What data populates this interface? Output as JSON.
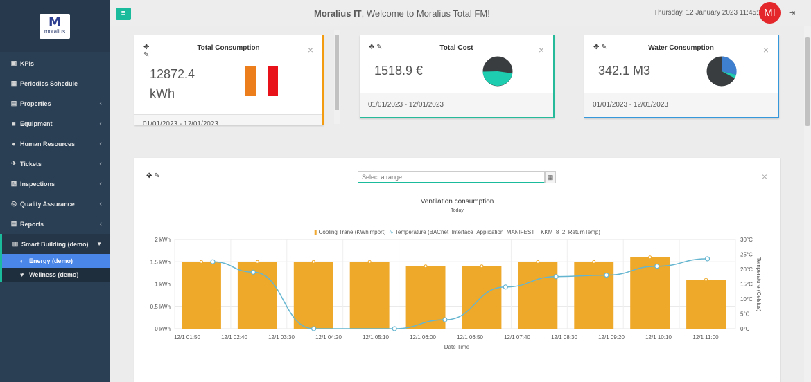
{
  "sidebar": {
    "logo_mark": "M",
    "logo_text": "moralius",
    "items": [
      {
        "label": "KPIs",
        "icon": "▣"
      },
      {
        "label": "Periodics Schedule",
        "icon": "▦"
      },
      {
        "label": "Properties",
        "icon": "▤"
      },
      {
        "label": "Equipment",
        "icon": "■"
      },
      {
        "label": "Human Resources",
        "icon": "●"
      },
      {
        "label": "Tickets",
        "icon": "✈"
      },
      {
        "label": "Inspections",
        "icon": "▧"
      },
      {
        "label": "Quality Assurance",
        "icon": "◎"
      },
      {
        "label": "Reports",
        "icon": "▤"
      }
    ],
    "active_item": {
      "label": "Smart Building (demo)",
      "icon": "▥"
    },
    "sub_items": [
      {
        "label": "Energy (demo)",
        "icon": "◐"
      },
      {
        "label": "Wellness (demo)",
        "icon": "♥"
      }
    ]
  },
  "topbar": {
    "brand": "Moralius IT",
    "welcome": ", Welcome to Moralius Total FM!",
    "datetime": "Thursday, 12 January 2023 11:45:16",
    "avatar_initials": "MI"
  },
  "cards": [
    {
      "title": "Total Consumption",
      "value": "12872.4",
      "unit": "kWh",
      "footer": "01/01/2023 - 12/01/2023",
      "accent": "#f39c12"
    },
    {
      "title": "Total Cost",
      "value": "1518.9 €",
      "footer": "01/01/2023 - 12/01/2023",
      "accent": "#26b99a"
    },
    {
      "title": "Water Consumption",
      "value": "342.1 M3",
      "footer": "01/01/2023 - 12/01/2023",
      "accent": "#3498db"
    }
  ],
  "range_input": {
    "placeholder": "Select a range"
  },
  "chart_data": {
    "type": "bar",
    "title": "Ventilation consumption",
    "subtitle": "Today",
    "xlabel": "Date Time",
    "ylabel_right": "Temperature (Celsius)",
    "categories": [
      "12/1 01:50",
      "12/1 02:40",
      "12/1 03:30",
      "12/1 04:20",
      "12/1 05:10",
      "12/1 06:00",
      "12/1 06:50",
      "12/1 07:40",
      "12/1 08:30",
      "12/1 09:20",
      "12/1 10:10",
      "12/1 11:00"
    ],
    "y_ticks": [
      "0 kWh",
      "0.5 kWh",
      "1 kWh",
      "1.5 kWh",
      "2 kWh"
    ],
    "y2_ticks": [
      "0°C",
      "5°C",
      "10°C",
      "15°C",
      "20°C",
      "25°C",
      "30°C"
    ],
    "ylim": [
      0,
      2
    ],
    "y2lim": [
      0,
      30
    ],
    "series": [
      {
        "name": "Cooling Trane (KWhimport)",
        "type": "bar",
        "color": "#eea82a",
        "x": [
          "01:50",
          "02:40",
          "03:30",
          "04:20",
          "05:10",
          "06:00",
          "06:50",
          "07:40",
          "08:30",
          "09:20"
        ],
        "values": [
          1.5,
          1.5,
          1.5,
          1.5,
          1.4,
          1.4,
          1.5,
          1.5,
          1.6,
          1.1
        ]
      },
      {
        "name": "Temperature (BACnet_Interface_Application_MANIFEST__KKM_8_2_ReturnTemp)",
        "type": "line",
        "color": "#64b5d0",
        "x": [
          "02:00",
          "02:40",
          "03:40",
          "05:00",
          "05:50",
          "06:50",
          "07:40",
          "08:30",
          "09:20",
          "10:10"
        ],
        "values": [
          22.5,
          19,
          0,
          0,
          3,
          14,
          17.5,
          18,
          21,
          23.5
        ]
      }
    ]
  }
}
